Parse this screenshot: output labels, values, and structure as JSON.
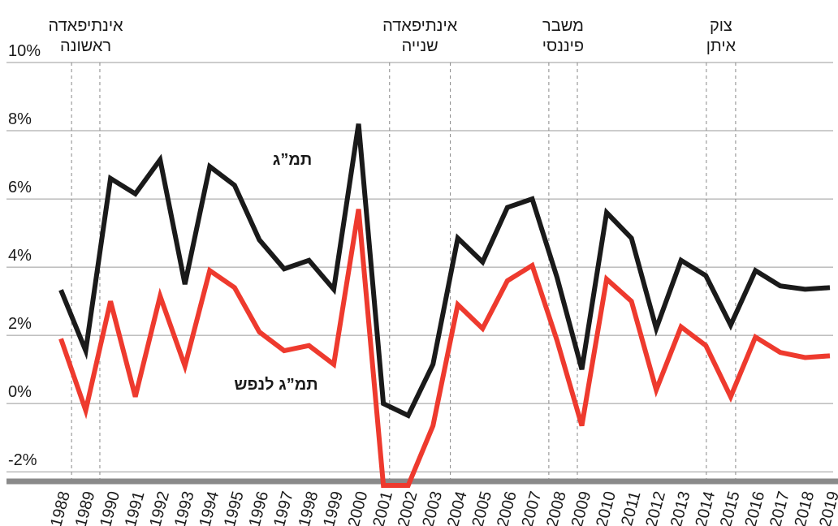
{
  "chart_data": {
    "type": "line",
    "x": [
      1988,
      1989,
      1990,
      1991,
      1992,
      1993,
      1994,
      1995,
      1996,
      1997,
      1998,
      1999,
      2000,
      2001,
      2002,
      2003,
      2004,
      2005,
      2006,
      2007,
      2008,
      2009,
      2010,
      2011,
      2012,
      2013,
      2014,
      2015,
      2016,
      2017,
      2018,
      2019
    ],
    "series": [
      {
        "name": "תמ”ג",
        "color": "#1a1a1a",
        "values": [
          3.33,
          1.55,
          6.6,
          6.15,
          7.15,
          3.5,
          6.95,
          6.4,
          4.8,
          3.95,
          4.2,
          3.35,
          8.2,
          0,
          -0.35,
          1.15,
          4.85,
          4.15,
          5.75,
          6.0,
          3.7,
          1.0,
          5.6,
          4.85,
          2.2,
          4.2,
          3.75,
          2.3,
          3.9,
          3.45,
          3.35,
          3.4
        ]
      },
      {
        "name": "תמ”ג לנפש",
        "color": "#ee3a2e",
        "values": [
          1.9,
          -0.2,
          3.0,
          0.2,
          3.15,
          1.1,
          3.9,
          3.4,
          2.1,
          1.55,
          1.7,
          1.15,
          5.7,
          -2.4,
          -2.4,
          -0.65,
          2.9,
          2.2,
          3.6,
          4.05,
          1.85,
          -0.65,
          3.65,
          3.0,
          0.4,
          2.25,
          1.7,
          0.2,
          1.95,
          1.5,
          1.35,
          1.4
        ]
      }
    ],
    "xlim": [
      1988,
      2019
    ],
    "ylim": [
      -2.4,
      10
    ],
    "yticks": [
      {
        "value": 10,
        "label": "10%"
      },
      {
        "value": 8,
        "label": "8%"
      },
      {
        "value": 6,
        "label": "6%"
      },
      {
        "value": 4,
        "label": "4%"
      },
      {
        "value": 2,
        "label": "2%"
      },
      {
        "value": 0,
        "label": "0%"
      },
      {
        "value": -2,
        "label": "-2%"
      }
    ],
    "grid": true,
    "events": [
      {
        "label": [
          "אינתיפאדה",
          "ראשונה"
        ],
        "x": [
          1988.43,
          1989.57
        ]
      },
      {
        "label": [
          "אינתיפאדה",
          "שנייה"
        ],
        "x": [
          2001.25,
          2003.7
        ]
      },
      {
        "label": [
          "משבר",
          "פיננסי"
        ],
        "x": [
          2007.67,
          2008.82
        ]
      },
      {
        "label": [
          "צוק",
          "איתן"
        ],
        "x": [
          2014.02,
          2015.2
        ]
      }
    ]
  }
}
